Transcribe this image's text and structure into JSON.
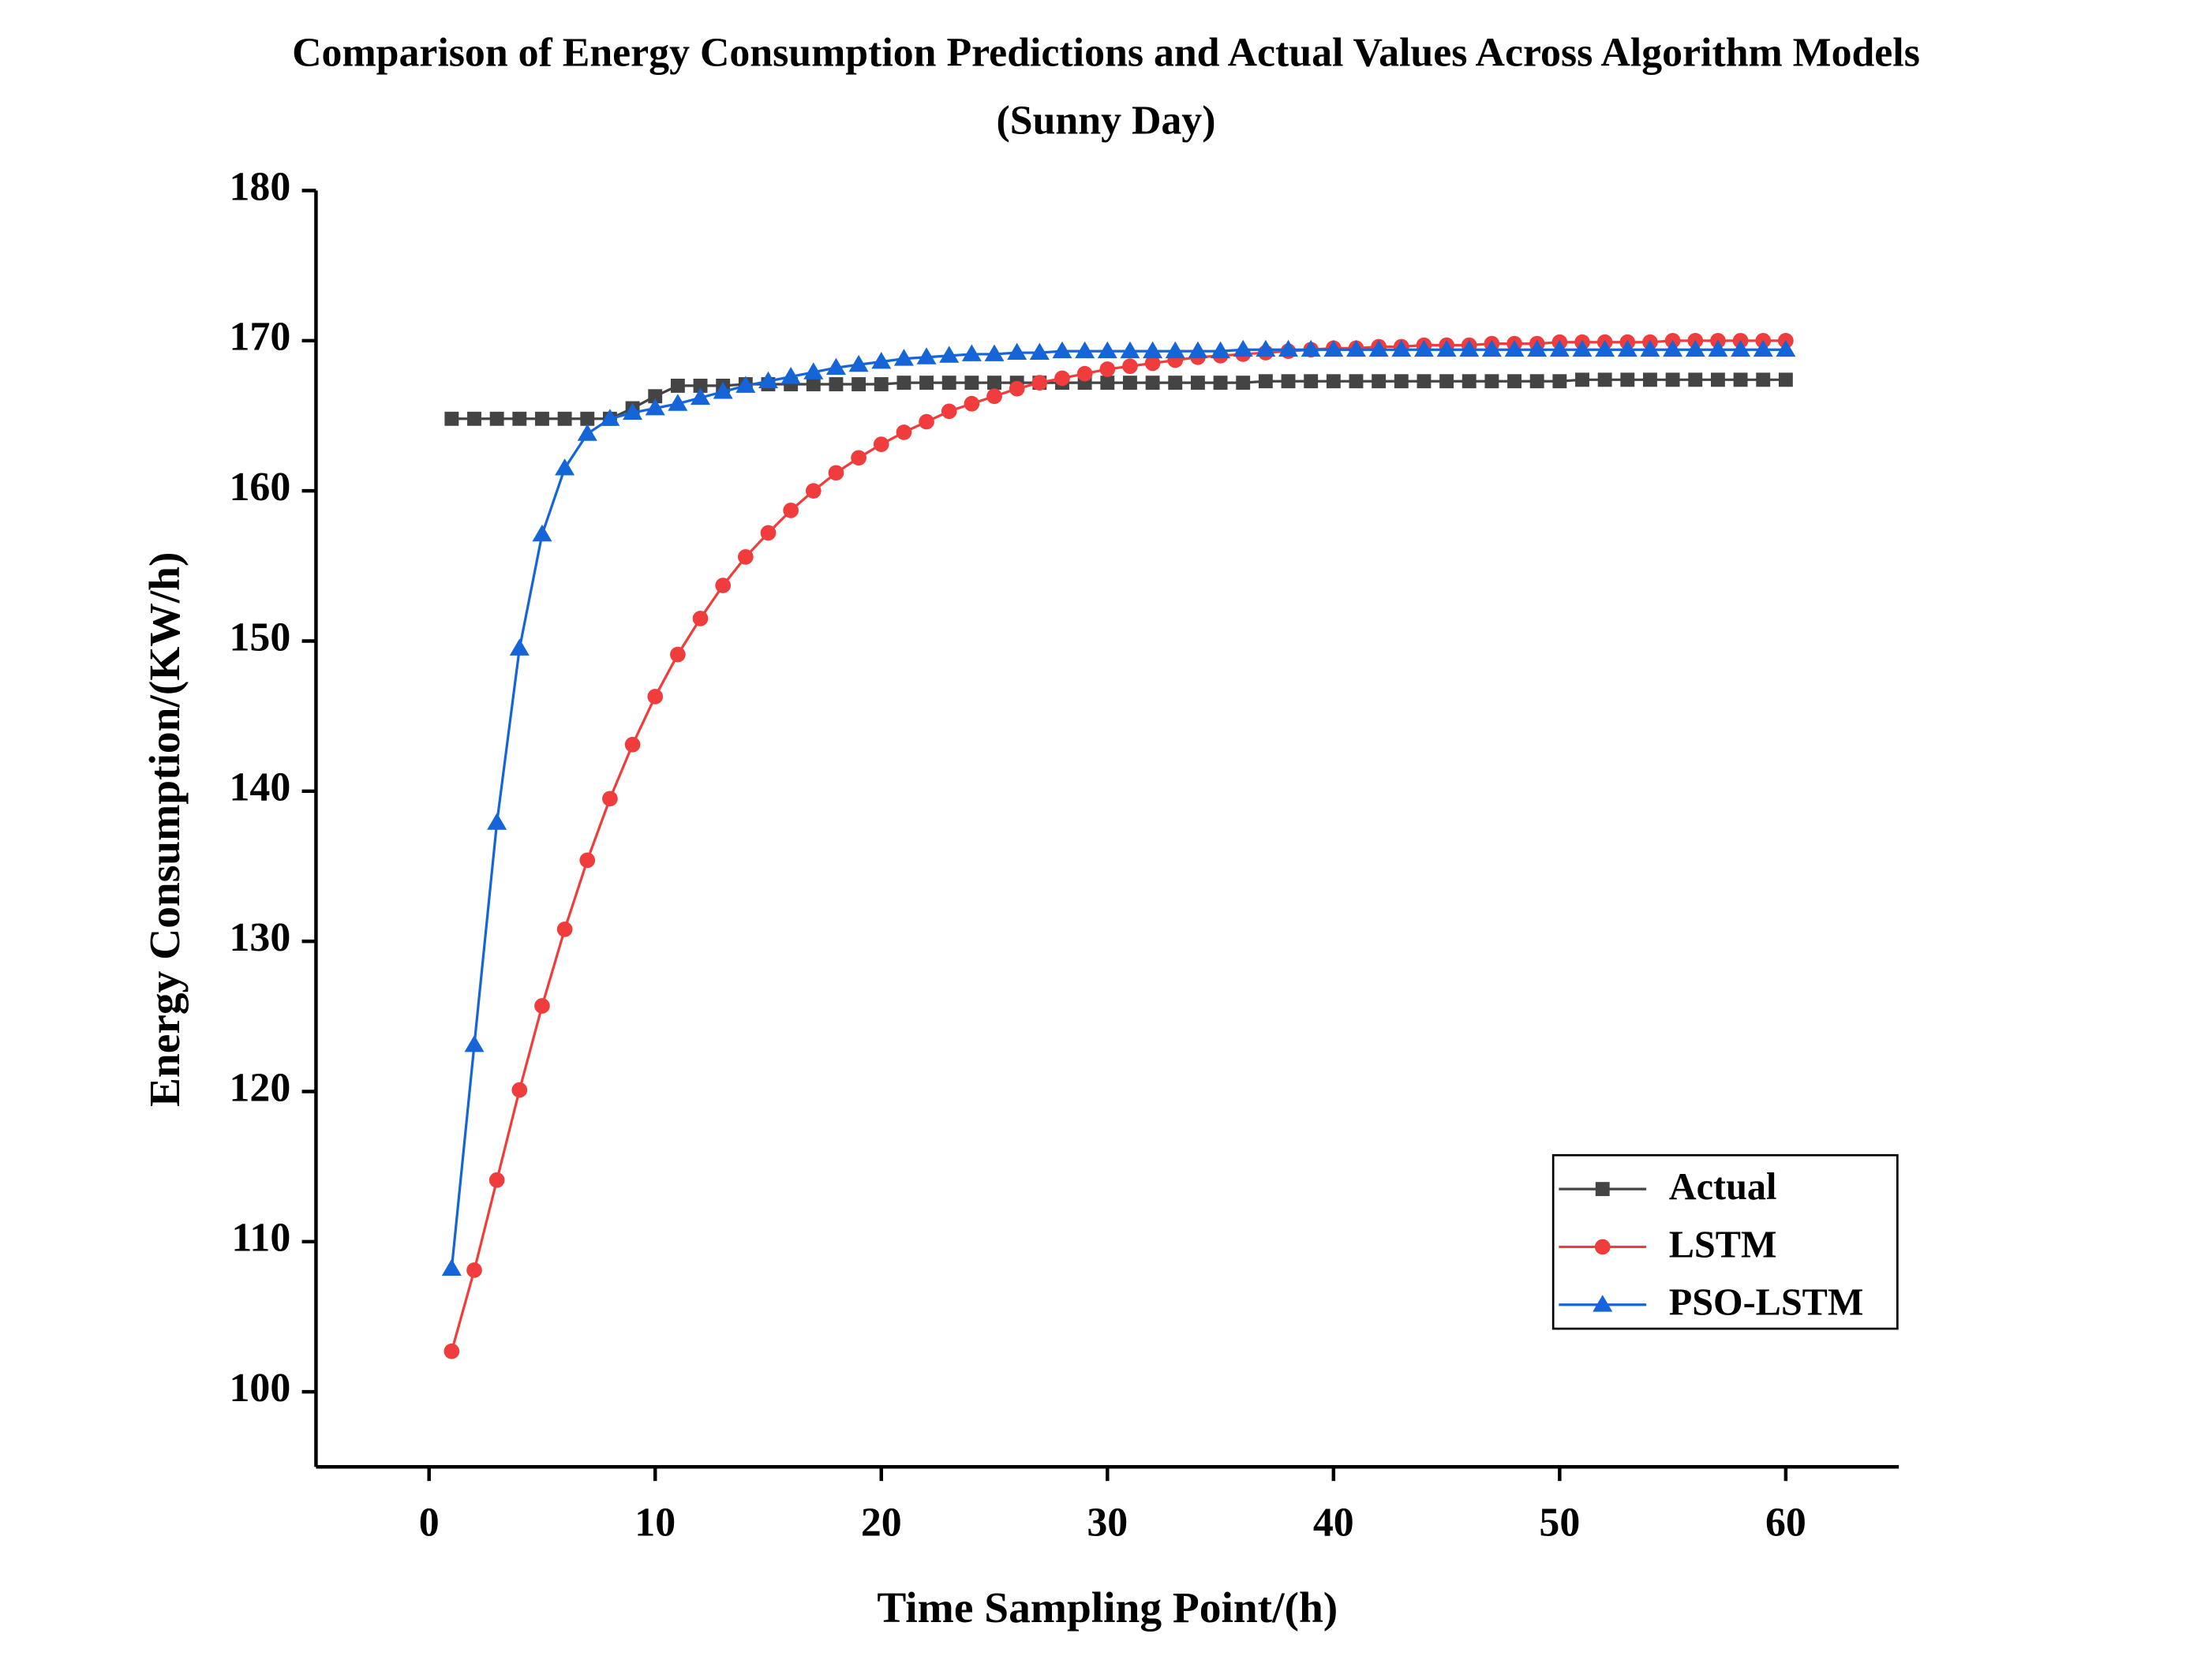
{
  "chart_data": {
    "type": "line",
    "title": "Comparison of Energy Consumption Predictions and Actual Values Across Algorithm Models",
    "subtitle": "(Sunny Day)",
    "x_label": "Time Sampling Point/(h)",
    "y_label": "Energy Consumption/(KW/h)",
    "x": [
      1,
      2,
      3,
      4,
      5,
      6,
      7,
      8,
      9,
      10,
      11,
      12,
      13,
      14,
      15,
      16,
      17,
      18,
      19,
      20,
      21,
      22,
      23,
      24,
      25,
      26,
      27,
      28,
      29,
      30,
      31,
      32,
      33,
      34,
      35,
      36,
      37,
      38,
      39,
      40,
      41,
      42,
      43,
      44,
      45,
      46,
      47,
      48,
      49,
      50,
      51,
      52,
      53,
      54,
      55,
      56,
      57,
      58,
      59,
      60
    ],
    "series": [
      {
        "name": "Actual",
        "color": "#444444",
        "marker": "square",
        "values": [
          164.8,
          164.8,
          164.8,
          164.8,
          164.8,
          164.8,
          164.8,
          164.8,
          165.5,
          166.3,
          167.0,
          167.0,
          167.0,
          167.1,
          167.1,
          167.1,
          167.1,
          167.1,
          167.1,
          167.1,
          167.2,
          167.2,
          167.2,
          167.2,
          167.2,
          167.2,
          167.2,
          167.2,
          167.2,
          167.2,
          167.2,
          167.2,
          167.2,
          167.2,
          167.2,
          167.2,
          167.3,
          167.3,
          167.3,
          167.3,
          167.3,
          167.3,
          167.3,
          167.3,
          167.3,
          167.3,
          167.3,
          167.3,
          167.3,
          167.3,
          167.4,
          167.4,
          167.4,
          167.4,
          167.4,
          167.4,
          167.4,
          167.4,
          167.4,
          167.4
        ]
      },
      {
        "name": "LSTM",
        "color": "#f03c3c",
        "marker": "circle",
        "values": [
          102.7,
          108.1,
          114.1,
          120.1,
          125.7,
          130.8,
          135.4,
          139.5,
          143.1,
          146.3,
          149.1,
          151.5,
          153.7,
          155.6,
          157.2,
          158.7,
          160.0,
          161.2,
          162.2,
          163.1,
          163.9,
          164.6,
          165.3,
          165.8,
          166.3,
          166.8,
          167.2,
          167.5,
          167.8,
          168.1,
          168.3,
          168.5,
          168.7,
          168.9,
          169.0,
          169.1,
          169.2,
          169.3,
          169.4,
          169.5,
          169.5,
          169.6,
          169.6,
          169.7,
          169.7,
          169.7,
          169.8,
          169.8,
          169.8,
          169.9,
          169.9,
          169.9,
          169.9,
          169.9,
          170.0,
          170.0,
          170.0,
          170.0,
          170.0,
          170.0
        ]
      },
      {
        "name": "PSO-LSTM",
        "color": "#1565d8",
        "marker": "triangle",
        "values": [
          108.2,
          123.1,
          137.9,
          149.5,
          157.1,
          161.5,
          163.8,
          164.8,
          165.2,
          165.5,
          165.8,
          166.2,
          166.6,
          167.0,
          167.3,
          167.6,
          167.9,
          168.2,
          168.4,
          168.6,
          168.8,
          168.9,
          169.0,
          169.1,
          169.1,
          169.2,
          169.2,
          169.3,
          169.3,
          169.3,
          169.3,
          169.3,
          169.3,
          169.3,
          169.3,
          169.4,
          169.4,
          169.4,
          169.4,
          169.4,
          169.4,
          169.4,
          169.4,
          169.4,
          169.4,
          169.4,
          169.4,
          169.4,
          169.4,
          169.4,
          169.4,
          169.4,
          169.4,
          169.4,
          169.4,
          169.4,
          169.4,
          169.4,
          169.4,
          169.4
        ]
      }
    ],
    "xlim": [
      -5,
      65
    ],
    "xticks": [
      0,
      10,
      20,
      30,
      40,
      50,
      60
    ],
    "ylim": [
      95,
      180
    ],
    "yticks": [
      100,
      110,
      120,
      130,
      140,
      150,
      160,
      170,
      180
    ],
    "legend": "lower right",
    "grid": false
  }
}
